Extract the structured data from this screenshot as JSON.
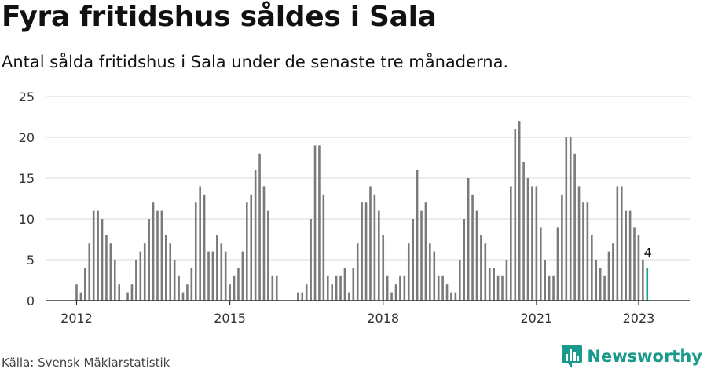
{
  "header": {
    "title": "Fyra fritidshus såldes i Sala",
    "subtitle": "Antal sålda fritidshus i Sala under de senaste tre månaderna."
  },
  "footer": {
    "source": "Källa: Svensk Mäklarstatistik",
    "brand": "Newsworthy"
  },
  "colors": {
    "bar": "#7a7a7a",
    "highlight": "#1aa190",
    "grid": "#d9d9d9",
    "axis": "#333333",
    "brand": "#1a9a8c"
  },
  "icons": {
    "logo": "newsworthy-chat-bars-icon"
  },
  "chart_data": {
    "type": "bar",
    "title": "Fyra fritidshus såldes i Sala",
    "subtitle": "Antal sålda fritidshus i Sala under de senaste tre månaderna.",
    "xlabel": "",
    "ylabel": "",
    "ylim": [
      0,
      25
    ],
    "yticks": [
      0,
      5,
      10,
      15,
      20,
      25
    ],
    "xticks": [
      "2012",
      "2015",
      "2018",
      "2021",
      "2023"
    ],
    "grid": true,
    "x_start": "2012-01",
    "frequency": "monthly",
    "values": [
      2,
      1,
      4,
      7,
      11,
      11,
      10,
      8,
      7,
      5,
      2,
      0,
      1,
      2,
      5,
      6,
      7,
      10,
      12,
      11,
      11,
      8,
      7,
      5,
      3,
      1,
      2,
      4,
      12,
      14,
      13,
      6,
      6,
      8,
      7,
      6,
      2,
      3,
      4,
      6,
      12,
      13,
      16,
      18,
      14,
      11,
      3,
      3,
      0,
      0,
      0,
      0,
      1,
      1,
      2,
      10,
      19,
      19,
      13,
      3,
      2,
      3,
      3,
      4,
      1,
      4,
      7,
      12,
      12,
      14,
      13,
      11,
      8,
      3,
      1,
      2,
      3,
      3,
      7,
      10,
      16,
      11,
      12,
      7,
      6,
      3,
      3,
      2,
      1,
      1,
      5,
      10,
      15,
      13,
      11,
      8,
      7,
      4,
      4,
      3,
      3,
      5,
      14,
      21,
      22,
      17,
      15,
      14,
      14,
      9,
      5,
      3,
      3,
      9,
      13,
      20,
      20,
      18,
      14,
      12,
      12,
      8,
      5,
      4,
      3,
      6,
      7,
      14,
      14,
      11,
      11,
      9,
      8,
      5,
      4
    ],
    "annotations": [
      {
        "label": "4",
        "index": 134
      }
    ],
    "highlight_last": true
  }
}
